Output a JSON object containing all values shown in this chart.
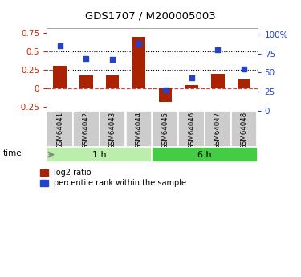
{
  "title": "GDS1707 / M200005003",
  "samples": [
    "GSM64041",
    "GSM64042",
    "GSM64043",
    "GSM64044",
    "GSM64045",
    "GSM64046",
    "GSM64047",
    "GSM64048"
  ],
  "log2_ratio": [
    0.3,
    0.17,
    0.18,
    0.7,
    -0.18,
    0.05,
    0.2,
    0.12
  ],
  "percentile_rank": [
    85,
    68,
    67,
    88,
    27,
    43,
    80,
    55
  ],
  "groups": [
    {
      "label": "1 h",
      "start": 0,
      "end": 4,
      "color": "#bbeeaa"
    },
    {
      "label": "6 h",
      "start": 4,
      "end": 8,
      "color": "#44cc44"
    }
  ],
  "bar_color": "#aa2200",
  "dot_color": "#2244cc",
  "zero_line_color": "#cc4444",
  "hline_values": [
    0.5,
    0.25
  ],
  "ylim_left": [
    -0.3,
    0.82
  ],
  "ylim_right": [
    0,
    109
  ],
  "left_yticks": [
    -0.25,
    0.0,
    0.25,
    0.5,
    0.75
  ],
  "right_yticks": [
    0,
    25,
    50,
    75,
    100
  ],
  "left_tick_color": "#cc2200",
  "right_tick_color": "#2244cc",
  "background_color": "#ffffff",
  "legend_items": [
    "log2 ratio",
    "percentile rank within the sample"
  ]
}
